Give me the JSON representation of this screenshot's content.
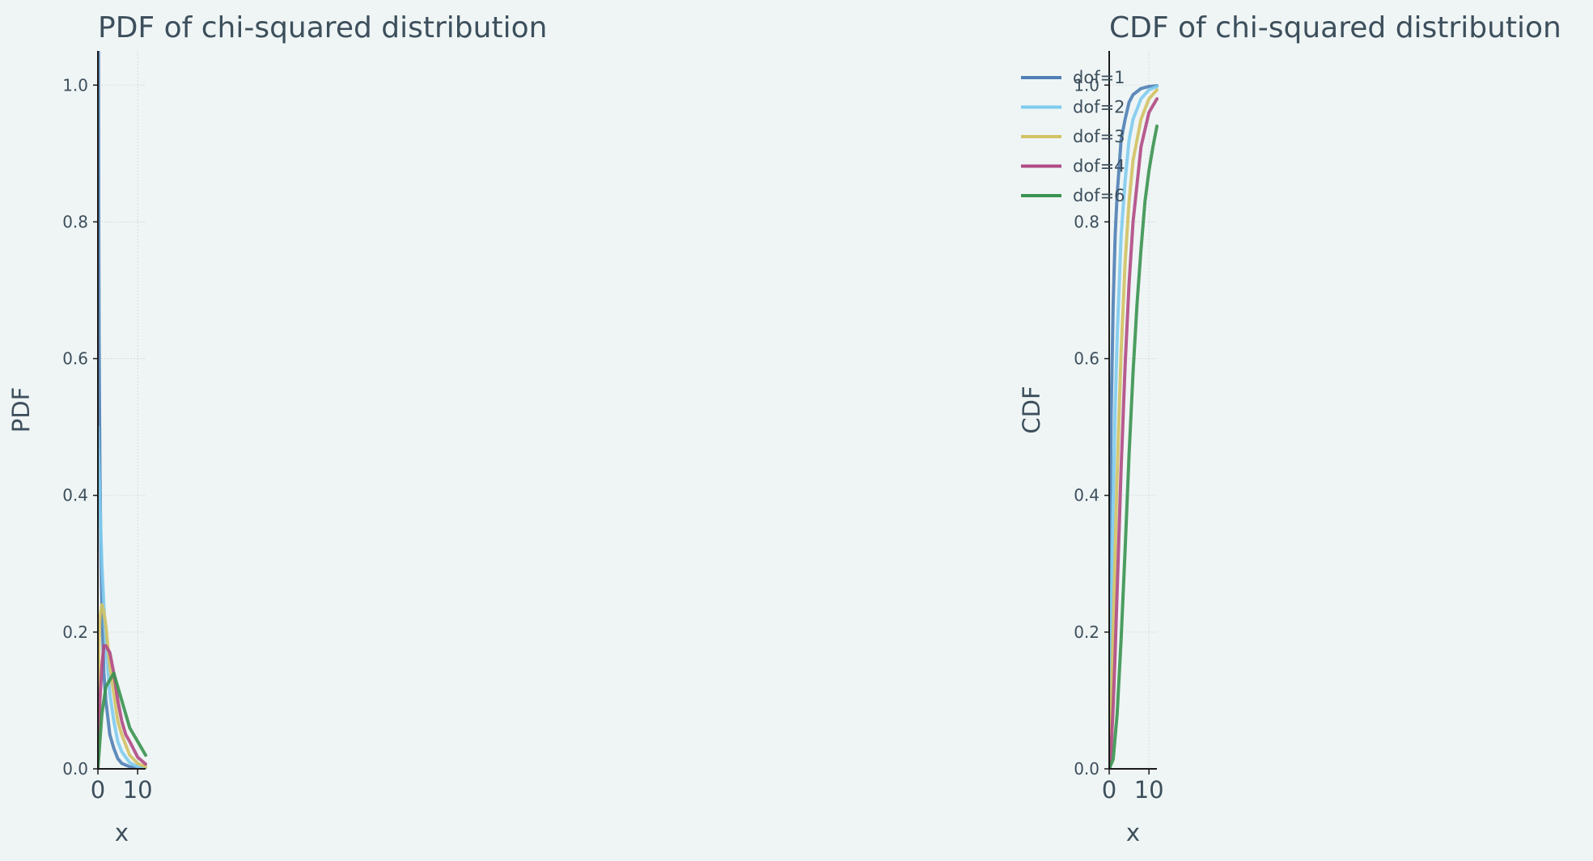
{
  "chart_data": [
    {
      "type": "line",
      "title": "PDF of chi-squared distribution",
      "xlabel": "x",
      "ylabel": "PDF",
      "xlim": [
        0,
        12
      ],
      "ylim": [
        0,
        1.05
      ],
      "xticks": [
        0,
        10
      ],
      "xtick_labels": [
        "0",
        "10"
      ],
      "yticks": [
        0,
        0.2,
        0.4,
        0.6,
        0.8,
        1.0
      ],
      "ytick_labels": [
        "0.0",
        "0.2",
        "0.4",
        "0.6",
        "0.8",
        "1.0"
      ],
      "grid": true,
      "legend": "none",
      "series": [
        {
          "dof": 1,
          "color": "#4f80b5",
          "x": [
            0.1,
            0.2,
            0.3,
            0.5,
            0.75,
            1,
            1.5,
            2,
            3,
            4,
            5,
            6,
            8,
            10,
            12
          ],
          "y": [
            1.2,
            0.81,
            0.63,
            0.44,
            0.32,
            0.24,
            0.14,
            0.1,
            0.05,
            0.03,
            0.015,
            0.008,
            0.003,
            0.001,
            0.0003
          ]
        },
        {
          "dof": 2,
          "color": "#7ecbee",
          "x": [
            0,
            0.5,
            1,
            1.5,
            2,
            3,
            4,
            5,
            6,
            8,
            10,
            12
          ],
          "y": [
            0.5,
            0.39,
            0.3,
            0.24,
            0.18,
            0.11,
            0.07,
            0.04,
            0.025,
            0.009,
            0.003,
            0.001
          ]
        },
        {
          "dof": 3,
          "color": "#d1c264",
          "x": [
            0,
            0.25,
            0.5,
            1,
            1.5,
            2,
            3,
            4,
            5,
            6,
            8,
            10,
            12
          ],
          "y": [
            0,
            0.18,
            0.22,
            0.24,
            0.23,
            0.21,
            0.15,
            0.11,
            0.07,
            0.05,
            0.02,
            0.008,
            0.003
          ]
        },
        {
          "dof": 4,
          "color": "#b04a84",
          "x": [
            0,
            0.5,
            1,
            1.5,
            2,
            3,
            4,
            5,
            6,
            7,
            8,
            10,
            12
          ],
          "y": [
            0,
            0.1,
            0.15,
            0.18,
            0.18,
            0.17,
            0.14,
            0.1,
            0.07,
            0.05,
            0.04,
            0.017,
            0.007
          ]
        },
        {
          "dof": 6,
          "color": "#3a9350",
          "x": [
            0,
            1,
            2,
            3,
            4,
            5,
            6,
            7,
            8,
            9,
            10,
            11,
            12
          ],
          "y": [
            0,
            0.08,
            0.12,
            0.13,
            0.14,
            0.12,
            0.1,
            0.08,
            0.06,
            0.05,
            0.04,
            0.03,
            0.02
          ]
        }
      ]
    },
    {
      "type": "line",
      "title": "CDF of chi-squared distribution",
      "xlabel": "x",
      "ylabel": "CDF",
      "xlim": [
        0,
        12
      ],
      "ylim": [
        0,
        1.05
      ],
      "xticks": [
        0,
        10
      ],
      "xtick_labels": [
        "0",
        "10"
      ],
      "yticks": [
        0,
        0.2,
        0.4,
        0.6,
        0.8,
        1.0
      ],
      "ytick_labels": [
        "0.0",
        "0.2",
        "0.4",
        "0.6",
        "0.8",
        "1.0"
      ],
      "grid": true,
      "legend": "top-left",
      "series": [
        {
          "name": "dof=1",
          "color": "#4f80b5",
          "x": [
            0,
            0.1,
            0.25,
            0.5,
            1,
            1.5,
            2,
            3,
            4,
            5,
            6,
            8,
            10,
            12
          ],
          "y": [
            0,
            0.25,
            0.38,
            0.52,
            0.68,
            0.78,
            0.84,
            0.92,
            0.95,
            0.975,
            0.986,
            0.995,
            0.998,
            0.999
          ]
        },
        {
          "name": "dof=2",
          "color": "#7ecbee",
          "x": [
            0,
            0.5,
            1,
            1.5,
            2,
            3,
            4,
            5,
            6,
            8,
            10,
            12
          ],
          "y": [
            0,
            0.22,
            0.39,
            0.53,
            0.63,
            0.78,
            0.86,
            0.92,
            0.95,
            0.98,
            0.993,
            0.998
          ]
        },
        {
          "name": "dof=3",
          "color": "#d1c264",
          "x": [
            0,
            0.5,
            1,
            1.5,
            2,
            3,
            4,
            5,
            6,
            8,
            10,
            12
          ],
          "y": [
            0,
            0.08,
            0.2,
            0.32,
            0.43,
            0.61,
            0.74,
            0.83,
            0.89,
            0.95,
            0.98,
            0.993
          ]
        },
        {
          "name": "dof=4",
          "color": "#b04a84",
          "x": [
            0,
            0.5,
            1,
            1.5,
            2,
            3,
            4,
            5,
            6,
            8,
            10,
            12
          ],
          "y": [
            0,
            0.03,
            0.09,
            0.17,
            0.26,
            0.44,
            0.59,
            0.71,
            0.8,
            0.91,
            0.96,
            0.98
          ]
        },
        {
          "name": "dof=6",
          "color": "#3a9350",
          "x": [
            0,
            1,
            2,
            3,
            4,
            5,
            6,
            7,
            8,
            9,
            10,
            11,
            12
          ],
          "y": [
            0,
            0.014,
            0.08,
            0.19,
            0.32,
            0.46,
            0.58,
            0.68,
            0.76,
            0.83,
            0.875,
            0.91,
            0.94
          ]
        }
      ]
    }
  ]
}
